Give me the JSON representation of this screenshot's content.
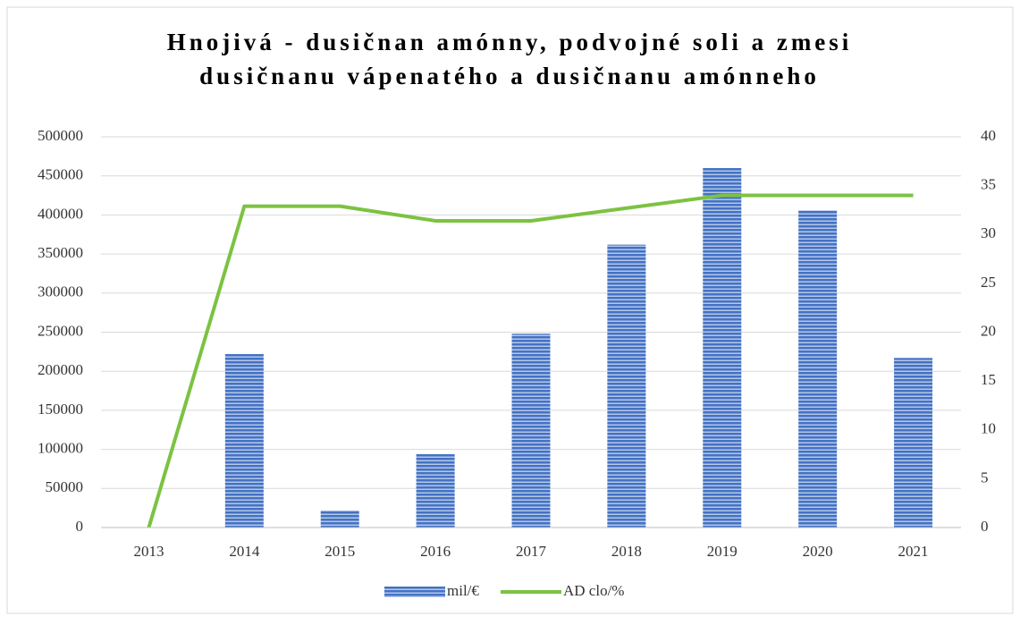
{
  "chart_data": {
    "type": "bar_line",
    "title": [
      "Hnojivá - dusičnan amónny, podvojné soli a zmesi",
      "dusičnanu vápenatého a dusičnanu amónneho"
    ],
    "categories": [
      "2013",
      "2014",
      "2015",
      "2016",
      "2017",
      "2018",
      "2019",
      "2020",
      "2021"
    ],
    "series": [
      {
        "name": "mil/€",
        "type": "bar",
        "color": "#4472c4",
        "values": [
          0,
          222000,
          22000,
          94000,
          248000,
          362000,
          460000,
          406000,
          217000
        ]
      },
      {
        "name": "AD clo/%",
        "type": "line",
        "axis": "y2",
        "color": "#7cc242",
        "values": [
          0,
          32.9,
          32.9,
          31.4,
          31.4,
          32.7,
          34,
          34,
          34
        ]
      }
    ],
    "ylim": [
      0,
      500000
    ],
    "yticks": [
      0,
      50000,
      100000,
      150000,
      200000,
      250000,
      300000,
      350000,
      400000,
      450000,
      500000
    ],
    "y2lim": [
      0,
      40
    ],
    "y2ticks": [
      0,
      5,
      10,
      15,
      20,
      25,
      30,
      35,
      40
    ],
    "grid": true,
    "legend": "bottom"
  }
}
